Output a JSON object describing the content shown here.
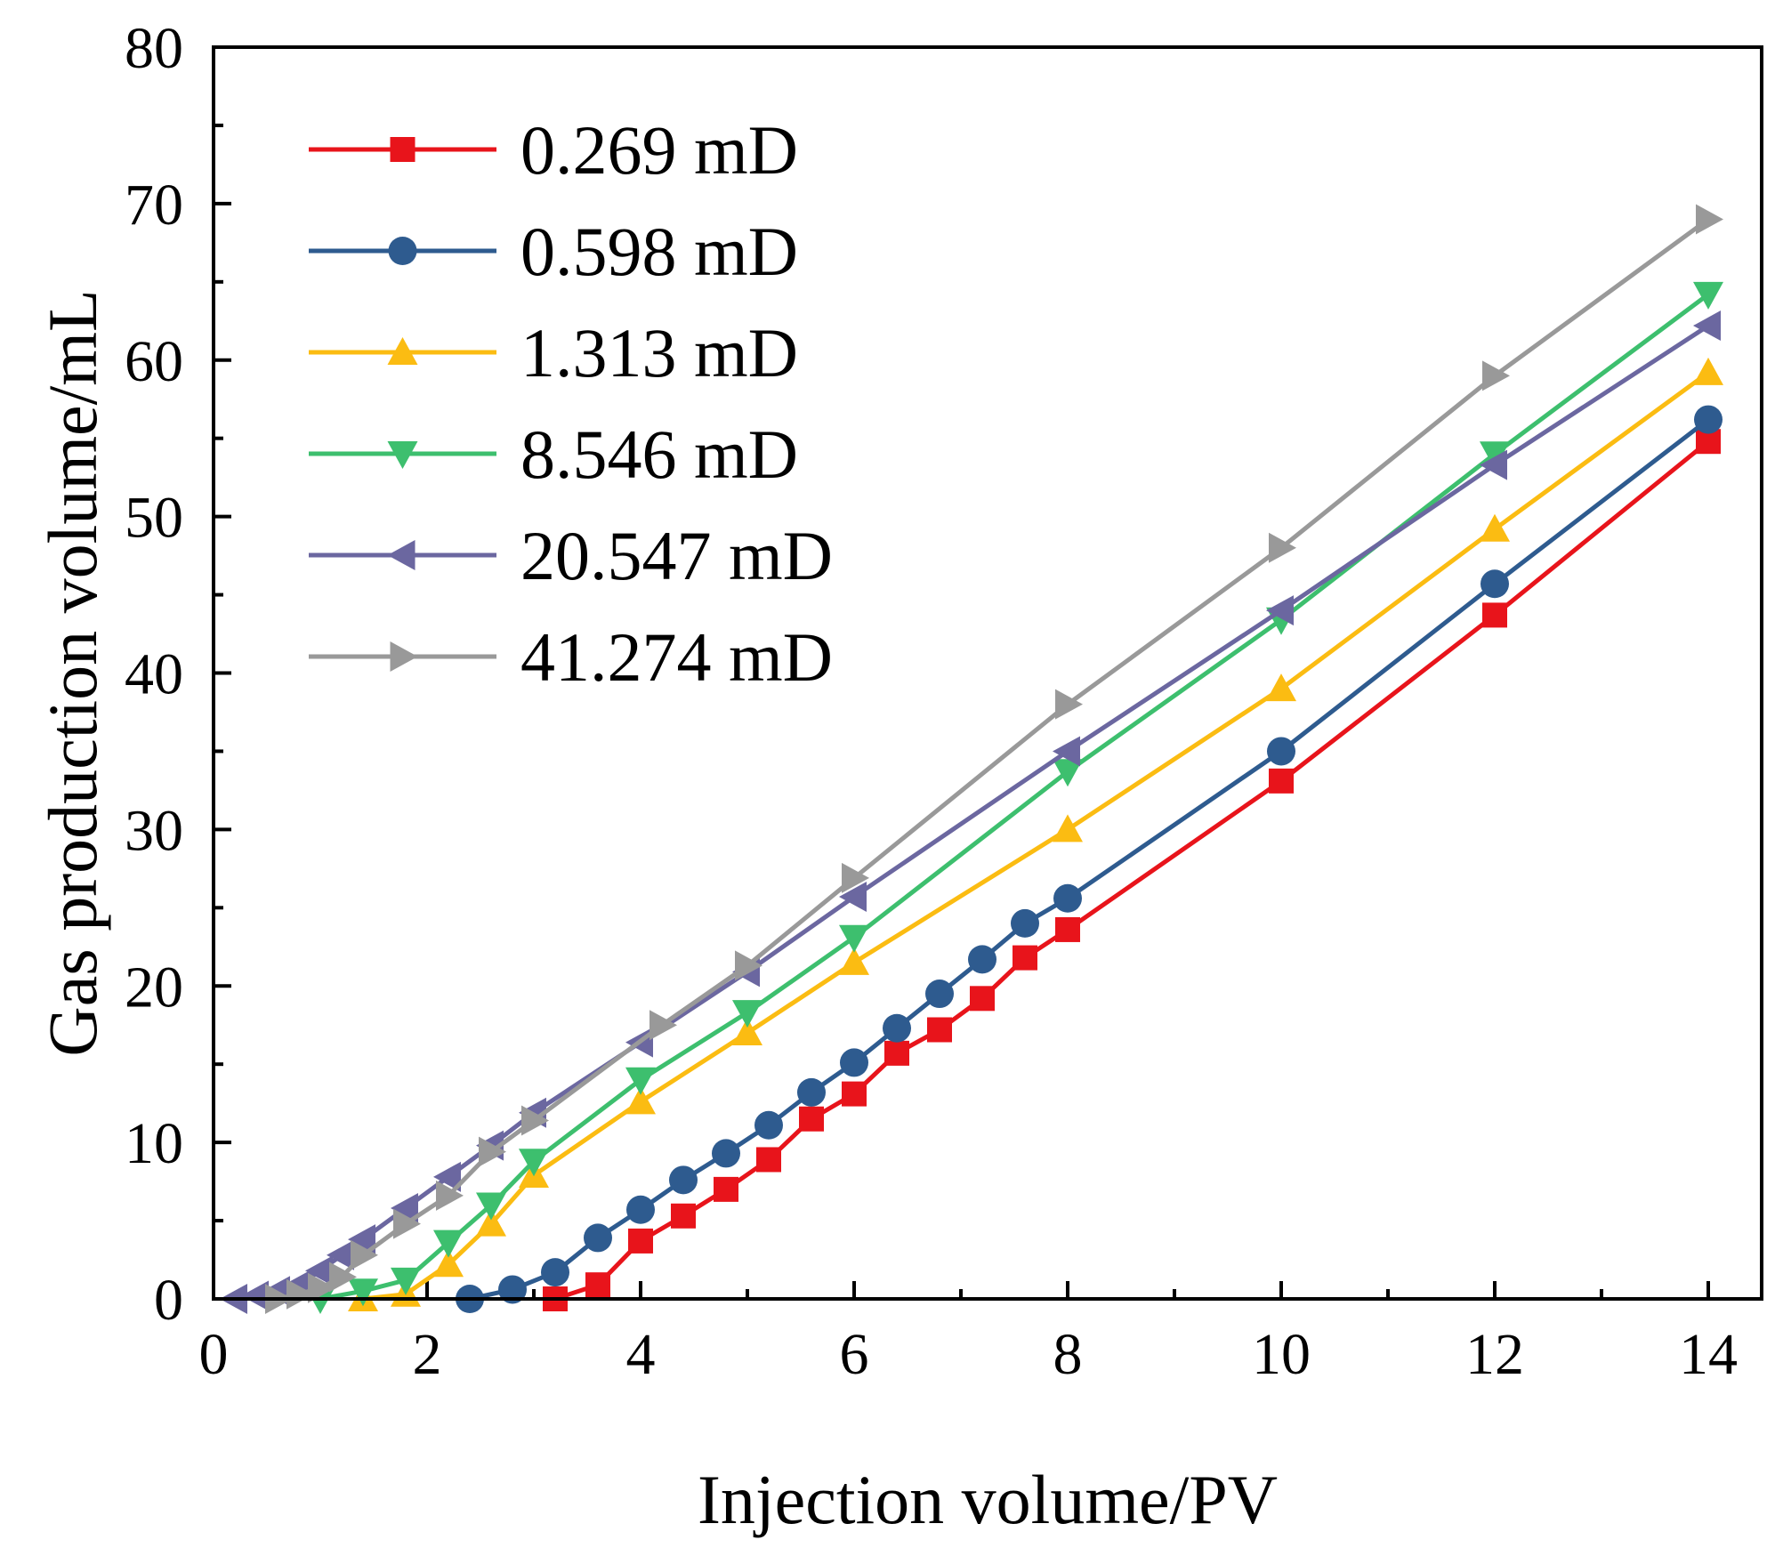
{
  "chart_data": {
    "type": "line",
    "title": "",
    "xlabel": "Injection volume/PV",
    "ylabel": "Gas production volume/mL",
    "xlim": [
      0,
      14.5
    ],
    "ylim": [
      0,
      80
    ],
    "x_ticks": [
      0,
      2,
      4,
      6,
      8,
      10,
      12,
      14
    ],
    "y_ticks": [
      0,
      10,
      20,
      30,
      40,
      50,
      60,
      70,
      80
    ],
    "x_tick_labels": [
      "0",
      "2",
      "4",
      "6",
      "8",
      "10",
      "12",
      "14"
    ],
    "y_tick_labels": [
      "0",
      "10",
      "20",
      "30",
      "40",
      "50",
      "60",
      "70",
      "80"
    ],
    "grid": false,
    "legend_position": "top-left",
    "series": [
      {
        "name": "0.269 mD",
        "color": "#e8141b",
        "marker": "square",
        "x": [
          3.2,
          3.6,
          4.0,
          4.4,
          4.8,
          5.2,
          5.6,
          6.0,
          6.4,
          6.8,
          7.2,
          7.6,
          8.0,
          10,
          12,
          14
        ],
        "y": [
          0,
          0.9,
          3.7,
          5.3,
          7.0,
          8.9,
          11.5,
          13.1,
          15.7,
          17.2,
          19.2,
          21.8,
          23.6,
          33.1,
          43.7,
          54.8
        ]
      },
      {
        "name": "0.598 mD",
        "color": "#2e5b8f",
        "marker": "circle",
        "x": [
          2.4,
          2.8,
          3.2,
          3.6,
          4.0,
          4.4,
          4.8,
          5.2,
          5.6,
          6.0,
          6.4,
          6.8,
          7.2,
          7.6,
          8.0,
          10,
          12,
          14
        ],
        "y": [
          0,
          0.6,
          1.7,
          3.9,
          5.7,
          7.6,
          9.3,
          11.1,
          13.2,
          15.1,
          17.3,
          19.5,
          21.7,
          24.0,
          25.6,
          35.0,
          45.7,
          56.2
        ]
      },
      {
        "name": "1.313 mD",
        "color": "#fbbc12",
        "marker": "triangle-up",
        "x": [
          1.4,
          1.8,
          2.2,
          2.6,
          3.0,
          4.0,
          5.0,
          6.0,
          8.0,
          10,
          12,
          14
        ],
        "y": [
          0,
          0.3,
          2.2,
          4.8,
          7.9,
          12.6,
          17.0,
          21.5,
          30.0,
          39.0,
          49.2,
          59.2
        ]
      },
      {
        "name": "8.546 mD",
        "color": "#3dbf6e",
        "marker": "triangle-down",
        "x": [
          1.0,
          1.4,
          1.8,
          2.2,
          2.6,
          3.0,
          4.0,
          5.0,
          6.0,
          8.0,
          10,
          12,
          14
        ],
        "y": [
          0,
          0.5,
          1.2,
          3.6,
          6.0,
          8.8,
          14.0,
          18.3,
          23.1,
          33.7,
          43.4,
          54.0,
          64.2
        ]
      },
      {
        "name": "20.547 mD",
        "color": "#6b67a0",
        "marker": "triangle-left",
        "x": [
          0.2,
          0.4,
          0.6,
          0.8,
          1.0,
          1.2,
          1.4,
          1.8,
          2.2,
          2.6,
          3.0,
          4.0,
          5.0,
          6.0,
          8.0,
          10,
          12,
          14
        ],
        "y": [
          0,
          0.2,
          0.5,
          0.9,
          1.8,
          2.8,
          3.8,
          5.8,
          7.8,
          9.8,
          11.9,
          16.4,
          20.9,
          25.7,
          35.0,
          44.0,
          53.3,
          62.2
        ]
      },
      {
        "name": "41.274 mD",
        "color": "#999999",
        "marker": "triangle-right",
        "x": [
          0.6,
          0.8,
          1.0,
          1.2,
          1.4,
          1.8,
          2.2,
          2.6,
          3.0,
          4.2,
          5.0,
          6.0,
          8.0,
          10,
          12,
          14
        ],
        "y": [
          0,
          0.3,
          0.7,
          1.4,
          2.8,
          4.8,
          6.6,
          9.4,
          11.4,
          17.5,
          21.3,
          26.9,
          38.0,
          48.0,
          59.0,
          69.0
        ]
      }
    ]
  }
}
